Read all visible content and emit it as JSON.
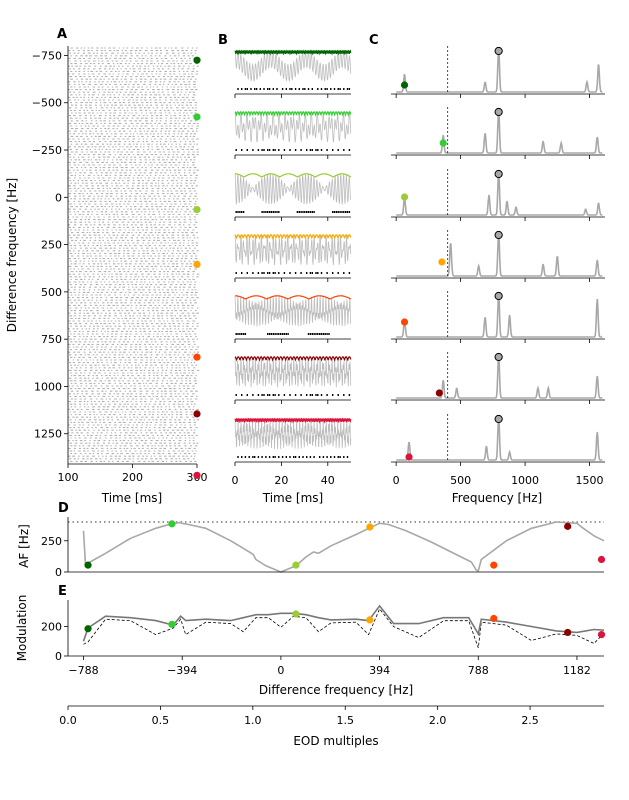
{
  "panels": {
    "A": {
      "letter": "A",
      "ylabel": "Difference frequency [Hz]",
      "xlabel": "Time [ms]",
      "xlim": [
        100,
        300
      ],
      "ylim": [
        1410,
        -800
      ],
      "xticks": [
        "100",
        "200",
        "300"
      ],
      "yticks": [
        {
          "v": -750,
          "t": "−750"
        },
        {
          "v": -500,
          "t": "−500"
        },
        {
          "v": -250,
          "t": "−250"
        },
        {
          "v": 0,
          "t": "0"
        },
        {
          "v": 250,
          "t": "250"
        },
        {
          "v": 500,
          "t": "500"
        },
        {
          "v": 750,
          "t": "750"
        },
        {
          "v": 1000,
          "t": "1000"
        },
        {
          "v": 1250,
          "t": "1250"
        }
      ],
      "marker_df": [
        -725,
        -425,
        65,
        355,
        845,
        1145,
        1470
      ]
    },
    "B": {
      "letter": "B",
      "xlabel": "Time [ms]",
      "xlim": [
        0,
        50
      ],
      "xticks": [
        "0",
        "20",
        "40"
      ]
    },
    "C": {
      "letter": "C",
      "xlabel": "Frequency [Hz]",
      "xlim": [
        -40,
        1620
      ],
      "xticks": [
        "0",
        "500",
        "1000",
        "1500"
      ],
      "dashed_x": 400,
      "eod_peak_x": 795
    },
    "D": {
      "letter": "D",
      "ylabel": "AF [Hz]",
      "xlim": [
        -850,
        1290
      ],
      "ylim": [
        0,
        440
      ],
      "yticks": [
        "0",
        "250"
      ],
      "dotted_y": 400
    },
    "E": {
      "letter": "E",
      "ylabel": "Modulation",
      "xlabel": "Difference frequency [Hz]",
      "xlim": [
        -850,
        1290
      ],
      "ylim": [
        0,
        380
      ],
      "yticks": [
        "0",
        "200"
      ],
      "xticks": [
        "−788",
        "−394",
        "0",
        "394",
        "788",
        "1182"
      ],
      "xtick_vals": [
        -788,
        -394,
        0,
        394,
        788,
        1182
      ]
    },
    "F": {
      "xlabel": "EOD multiples",
      "xlim": [
        0,
        2.9
      ],
      "xticks": [
        "0.0",
        "0.5",
        "1.0",
        "1.5",
        "2.0",
        "2.5"
      ]
    }
  },
  "colors": [
    "#006400",
    "#32cd32",
    "#9acd32",
    "#ffa500",
    "#ff4500",
    "#8b0000",
    "#dc143c"
  ],
  "chart_data": [
    {
      "type": "line",
      "panel": "D",
      "xlabel": "Difference frequency [Hz]",
      "ylabel": "AF [Hz]",
      "ylim": [
        0,
        440
      ],
      "x": [
        -788,
        -780,
        -700,
        -600,
        -500,
        -430,
        -400,
        -394,
        -380,
        -300,
        -200,
        -150,
        -110,
        -100,
        -60,
        0,
        60,
        100,
        130,
        150,
        200,
        300,
        394,
        430,
        500,
        600,
        700,
        760,
        780,
        788,
        800,
        900,
        1000,
        1100,
        1182,
        1200,
        1250,
        1290
      ],
      "y": [
        330,
        60,
        150,
        270,
        350,
        390,
        395,
        390,
        385,
        350,
        250,
        190,
        140,
        100,
        50,
        0,
        50,
        120,
        160,
        150,
        210,
        300,
        390,
        380,
        330,
        240,
        140,
        80,
        15,
        10,
        100,
        250,
        350,
        400,
        390,
        360,
        290,
        250
      ],
      "markers": [
        {
          "x": -770,
          "y": 55
        },
        {
          "x": -435,
          "y": 385
        },
        {
          "x": 60,
          "y": 55
        },
        {
          "x": 355,
          "y": 360
        },
        {
          "x": 850,
          "y": 55
        },
        {
          "x": 1145,
          "y": 365
        },
        {
          "x": 1280,
          "y": 100
        }
      ]
    },
    {
      "type": "line",
      "panel": "E",
      "xlabel": "Difference frequency [Hz]",
      "ylabel": "Modulation",
      "ylim": [
        0,
        380
      ],
      "xticks": [
        -788,
        -394,
        0,
        394,
        788,
        1182
      ],
      "x": [
        -788,
        -770,
        -700,
        -600,
        -500,
        -430,
        -400,
        -380,
        -300,
        -200,
        -150,
        -100,
        -50,
        0,
        50,
        100,
        150,
        200,
        300,
        350,
        394,
        450,
        550,
        650,
        750,
        788,
        800,
        900,
        1000,
        1100,
        1182,
        1250,
        1290
      ],
      "y": [
        100,
        190,
        270,
        260,
        240,
        210,
        270,
        240,
        250,
        240,
        260,
        280,
        280,
        290,
        290,
        280,
        260,
        245,
        250,
        240,
        340,
        220,
        220,
        260,
        260,
        150,
        250,
        230,
        200,
        170,
        160,
        180,
        175
      ],
      "markers": [
        {
          "x": -770,
          "y": 185
        },
        {
          "x": -435,
          "y": 215
        },
        {
          "x": 60,
          "y": 285
        },
        {
          "x": 355,
          "y": 245
        },
        {
          "x": 850,
          "y": 255
        },
        {
          "x": 1145,
          "y": 160
        },
        {
          "x": 1280,
          "y": 145
        }
      ]
    }
  ]
}
